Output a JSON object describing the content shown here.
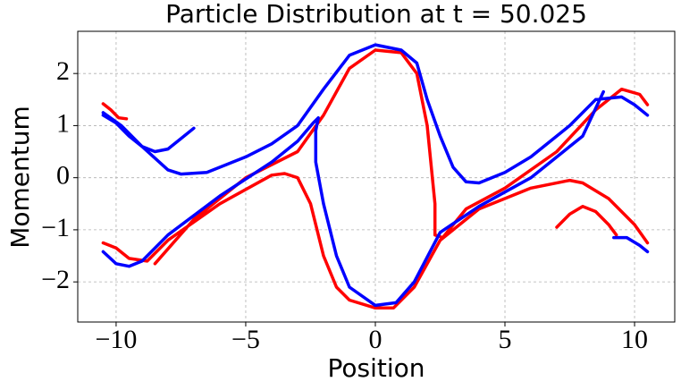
{
  "chart_data": {
    "type": "line",
    "title": "Particle Distribution at t = 50.025",
    "x_label": "Position",
    "y_label": "Momentum",
    "xlim": [
      -11.48,
      11.55
    ],
    "ylim": [
      -2.77,
      2.81
    ],
    "xticks": [
      {
        "value": -10,
        "label": "−10"
      },
      {
        "value": -5,
        "label": "−5"
      },
      0,
      5,
      10
    ],
    "yticks": [
      {
        "value": -2,
        "label": "−2"
      },
      {
        "value": -1,
        "label": "−1"
      },
      0,
      1,
      2
    ],
    "grid": true,
    "series": [
      {
        "color": "#ff0000",
        "x": [
          -10.5,
          -10.2,
          -9.9,
          -9.6,
          null,
          -10.5,
          -10,
          -9.5,
          -8.8,
          -8,
          -6,
          -4,
          -3.5,
          -3,
          -2.5,
          -2,
          -1.5,
          -1,
          0,
          0.7,
          1.5,
          2.5,
          4,
          6,
          7.5,
          8,
          9,
          10,
          10.5,
          null,
          -8.5,
          -7,
          -5,
          -3,
          -2,
          -1,
          0,
          1,
          1.6,
          2,
          2.3,
          2.3,
          2.6,
          3.5,
          5,
          7,
          8.5,
          9.5,
          10.2,
          10.5,
          null,
          7,
          7.5,
          8,
          8.5,
          9,
          9.3
        ],
        "values": [
          1.42,
          1.3,
          1.15,
          1.13,
          null,
          -1.25,
          -1.35,
          -1.55,
          -1.6,
          -1.2,
          -0.5,
          0.05,
          0.08,
          0,
          -0.5,
          -1.5,
          -2.1,
          -2.35,
          -2.5,
          -2.5,
          -2.1,
          -1.2,
          -0.6,
          -0.2,
          -0.05,
          -0.1,
          -0.4,
          -0.9,
          -1.25,
          null,
          -1.65,
          -0.8,
          0,
          0.5,
          1.2,
          2.1,
          2.45,
          2.4,
          2,
          1,
          -0.5,
          -1.1,
          -1.15,
          -0.6,
          -0.2,
          0.5,
          1.3,
          1.7,
          1.6,
          1.4,
          null,
          -0.95,
          -0.7,
          -0.55,
          -0.65,
          -0.9,
          -1.1
        ]
      },
      {
        "color": "#0000ff",
        "x": [
          -10.5,
          -10,
          -9.5,
          -9,
          -8.5,
          -8,
          -7.5,
          -7,
          null,
          -10.5,
          -9.8,
          -9,
          -8,
          -7.5,
          -6.5,
          -5,
          -4,
          -3,
          -2,
          -1,
          0,
          1,
          1.6,
          2,
          2.5,
          3,
          3.5,
          4,
          5,
          6,
          7.5,
          8.5,
          9.5,
          10,
          10.5,
          null,
          -10.5,
          -10,
          -9.5,
          -9,
          -8,
          -6,
          -4,
          -3,
          -2.4,
          -2.2,
          -2.3,
          -2.3,
          -2,
          -1.5,
          -1,
          0,
          0.8,
          1.5,
          2.5,
          4,
          6,
          8,
          8.8,
          null,
          9.2,
          9.7,
          10.2,
          10.5
        ],
        "values": [
          1.2,
          1.05,
          0.8,
          0.6,
          0.5,
          0.55,
          0.75,
          0.95,
          null,
          1.25,
          1.0,
          0.6,
          0.15,
          0.07,
          0.1,
          0.4,
          0.65,
          1.0,
          1.7,
          2.35,
          2.55,
          2.45,
          2.2,
          1.5,
          0.8,
          0.2,
          -0.08,
          -0.1,
          0.1,
          0.4,
          1.0,
          1.5,
          1.55,
          1.4,
          1.2,
          null,
          -1.42,
          -1.65,
          -1.7,
          -1.6,
          -1.1,
          -0.35,
          0.3,
          0.7,
          1.05,
          1.15,
          0.9,
          0.3,
          -0.5,
          -1.5,
          -2.1,
          -2.45,
          -2.4,
          -2,
          -1.05,
          -0.55,
          0,
          0.8,
          1.65,
          null,
          -1.15,
          -1.15,
          -1.3,
          -1.42
        ]
      }
    ]
  }
}
